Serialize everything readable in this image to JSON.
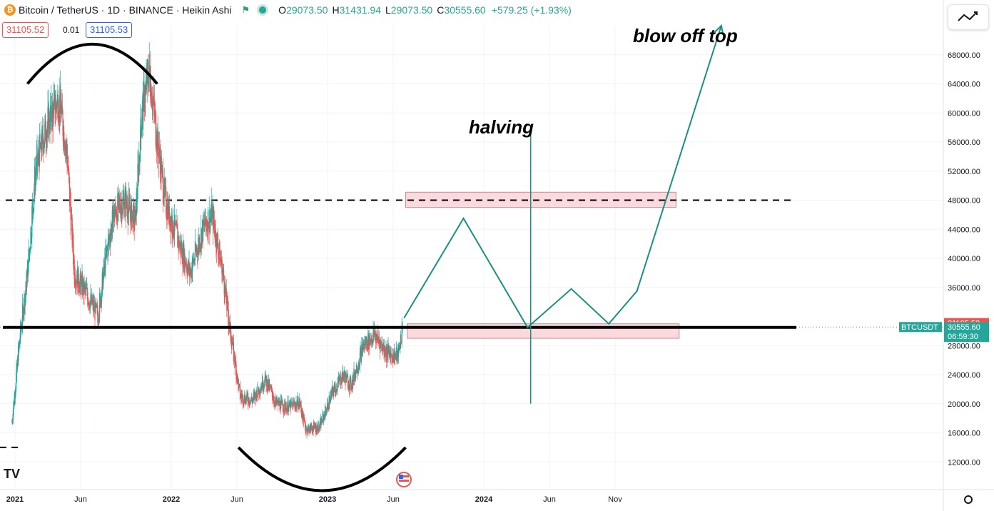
{
  "header": {
    "symbol": "Bitcoin / TetherUS · 1D · BINANCE · Heikin Ashi",
    "o_key": "O",
    "o_val": "29073.50",
    "h_key": "H",
    "h_val": "31431.94",
    "l_key": "L",
    "l_val": "29073.50",
    "c_key": "C",
    "c_val": "30555.60",
    "change": "+579.25 (+1.93%)",
    "logo": "₿"
  },
  "order_box": {
    "sell": "31105.52",
    "spread": "0.01",
    "buy": "31105.53"
  },
  "chart_data": {
    "type": "candlestick",
    "style": "Heikin Ashi",
    "timeframe": "1D",
    "exchange": "BINANCE",
    "instrument": "BTCUSDT",
    "y_ticks": [
      "68000.00",
      "64000.00",
      "60000.00",
      "56000.00",
      "52000.00",
      "48000.00",
      "44000.00",
      "40000.00",
      "36000.00",
      "28000.00",
      "24000.00",
      "20000.00",
      "16000.00",
      "12000.00"
    ],
    "ylim": [
      8000,
      71000
    ],
    "x_ticks": [
      {
        "label": "2021",
        "t": 2021.0,
        "bold": true
      },
      {
        "label": "Jun",
        "t": 2021.42,
        "bold": false
      },
      {
        "label": "2022",
        "t": 2022.0,
        "bold": true
      },
      {
        "label": "Jun",
        "t": 2022.42,
        "bold": false
      },
      {
        "label": "2023",
        "t": 2023.0,
        "bold": true
      },
      {
        "label": "Jun",
        "t": 2023.42,
        "bold": false
      },
      {
        "label": "2024",
        "t": 2024.0,
        "bold": true
      },
      {
        "label": "Jun",
        "t": 2024.42,
        "bold": false
      },
      {
        "label": "Nov",
        "t": 2024.84,
        "bold": false
      }
    ],
    "price_path": [
      [
        2020.98,
        17500
      ],
      [
        2021.03,
        29000
      ],
      [
        2021.08,
        38000
      ],
      [
        2021.13,
        52000
      ],
      [
        2021.2,
        58000
      ],
      [
        2021.28,
        62000
      ],
      [
        2021.33,
        55000
      ],
      [
        2021.38,
        38000
      ],
      [
        2021.46,
        35000
      ],
      [
        2021.53,
        32000
      ],
      [
        2021.58,
        40000
      ],
      [
        2021.63,
        46000
      ],
      [
        2021.7,
        48000
      ],
      [
        2021.77,
        45000
      ],
      [
        2021.81,
        60000
      ],
      [
        2021.86,
        66000
      ],
      [
        2021.9,
        58000
      ],
      [
        2021.96,
        48000
      ],
      [
        2022.05,
        42000
      ],
      [
        2022.12,
        38000
      ],
      [
        2022.2,
        44000
      ],
      [
        2022.26,
        46000
      ],
      [
        2022.33,
        38000
      ],
      [
        2022.37,
        31000
      ],
      [
        2022.44,
        21000
      ],
      [
        2022.52,
        20500
      ],
      [
        2022.6,
        23500
      ],
      [
        2022.67,
        20000
      ],
      [
        2022.75,
        19500
      ],
      [
        2022.82,
        20200
      ],
      [
        2022.86,
        16500
      ],
      [
        2022.95,
        16800
      ],
      [
        2023.03,
        21500
      ],
      [
        2023.1,
        24000
      ],
      [
        2023.15,
        22500
      ],
      [
        2023.23,
        28000
      ],
      [
        2023.3,
        29500
      ],
      [
        2023.38,
        27000
      ],
      [
        2023.45,
        26500
      ],
      [
        2023.48,
        30555.6
      ]
    ],
    "projection": [
      [
        2023.49,
        31800
      ],
      [
        2023.87,
        45500
      ],
      [
        2024.28,
        30500
      ],
      [
        2024.56,
        35800
      ],
      [
        2024.8,
        31000
      ],
      [
        2024.98,
        35500
      ],
      [
        2025.52,
        72000
      ]
    ],
    "levels": {
      "current_price": 30555.6,
      "ask": 31105.52,
      "support_line": 30500,
      "resistance_dashed": 48000,
      "lower_dashed": 14000
    },
    "zones": [
      {
        "t1": 2023.5,
        "t2": 2025.23,
        "y1": 47000,
        "y2": 49100
      },
      {
        "t1": 2023.51,
        "t2": 2025.25,
        "y1": 29000,
        "y2": 31000
      }
    ],
    "halving_t": 2024.3,
    "halving_range": [
      20000,
      57000
    ],
    "arc_top": {
      "t1": 2021.08,
      "t2": 2021.91,
      "y_base": 64000,
      "y_peak": 71000
    },
    "arc_bottom": {
      "t1": 2022.43,
      "t2": 2023.5,
      "y_base": 14000,
      "y_peak": 8000
    },
    "annotations": [
      "blow off top",
      "halving"
    ],
    "price_tags": {
      "ask": "31105.52",
      "symbol": "BTCUSDT",
      "last": "30555.60",
      "countdown": "06:59:30"
    },
    "colors": {
      "up": "#26a69a",
      "down": "#ef5350",
      "zone_fill": "#fbd9dc",
      "zone_border": "#c98b92",
      "ask": "#ef5350"
    }
  }
}
